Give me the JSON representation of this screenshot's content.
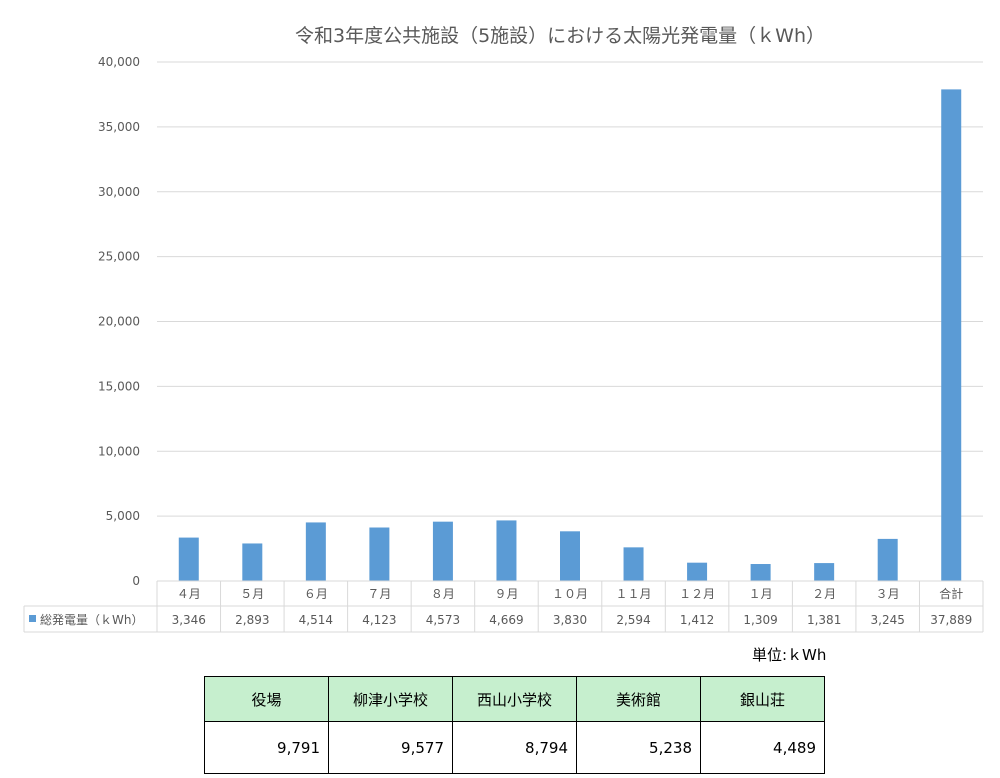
{
  "chart_data": {
    "type": "bar",
    "title": "令和3年度公共施設（5施設）における太陽光発電量（ｋWh）",
    "categories": [
      "４月",
      "５月",
      "６月",
      "７月",
      "８月",
      "９月",
      "１０月",
      "１１月",
      "１２月",
      "１月",
      "２月",
      "３月",
      "合計"
    ],
    "series": [
      {
        "name": "総発電量（ｋWh）",
        "values": [
          3346,
          2893,
          4514,
          4123,
          4573,
          4669,
          3830,
          2594,
          1412,
          1309,
          1381,
          3245,
          37889
        ],
        "value_labels": [
          "3,346",
          "2,893",
          "4,514",
          "4,123",
          "4,573",
          "4,669",
          "3,830",
          "2,594",
          "1,412",
          "1,309",
          "1,381",
          "3,245",
          "37,889"
        ],
        "color": "#5b9bd5"
      }
    ],
    "ylim": [
      0,
      40000
    ],
    "yticks": [
      "0",
      "5,000",
      "10,000",
      "15,000",
      "20,000",
      "25,000",
      "30,000",
      "35,000",
      "40,000"
    ],
    "grid": true,
    "legend": "data-table"
  },
  "unit_label": "単位:ｋWh",
  "facilities": {
    "names": [
      "役場",
      "柳津小学校",
      "西山小学校",
      "美術館",
      "銀山荘"
    ],
    "values": [
      "9,791",
      "9,577",
      "8,794",
      "5,238",
      "4,489"
    ]
  }
}
